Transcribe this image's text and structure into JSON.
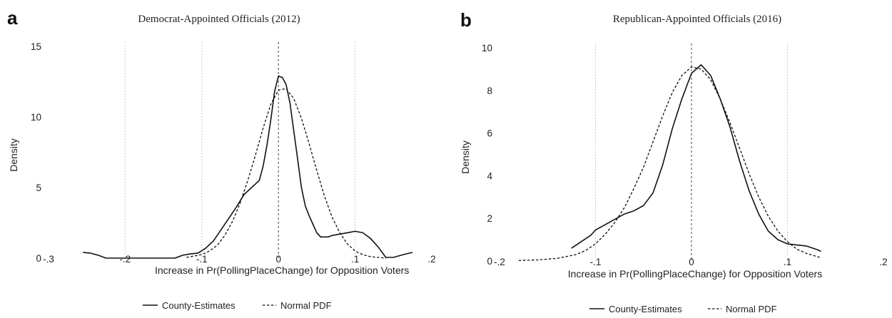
{
  "chart_data": [
    {
      "panel_label": "a",
      "type": "line",
      "title": "Democrat-Appointed Officials (2012)",
      "xlabel": "Increase in Pr(PollingPlaceChange) for Opposition Voters",
      "ylabel": "Density",
      "xlim": [
        -0.3,
        0.2
      ],
      "ylim": [
        0,
        15
      ],
      "x_ticks": [
        -0.3,
        -0.2,
        -0.1,
        0,
        0.1,
        0.2
      ],
      "x_tick_labels": [
        "-.3",
        "-.2",
        "-.1",
        "0",
        ".1",
        ".2"
      ],
      "y_ticks": [
        0,
        5,
        10,
        15
      ],
      "y_tick_labels": [
        "0",
        "5",
        "10",
        "15"
      ],
      "vgrid": [
        -0.2,
        -0.1,
        0.1
      ],
      "vline": 0,
      "legend_position": "bottom",
      "series": [
        {
          "name": "County-Estimates",
          "style": "solid",
          "x": [
            -0.255,
            -0.245,
            -0.235,
            -0.225,
            -0.2,
            -0.15,
            -0.135,
            -0.125,
            -0.115,
            -0.105,
            -0.095,
            -0.085,
            -0.075,
            -0.065,
            -0.055,
            -0.045,
            -0.035,
            -0.025,
            -0.02,
            -0.015,
            -0.01,
            -0.005,
            0,
            0.005,
            0.01,
            0.015,
            0.02,
            0.025,
            0.03,
            0.035,
            0.04,
            0.045,
            0.05,
            0.055,
            0.06,
            0.065,
            0.07,
            0.08,
            0.09,
            0.1,
            0.11,
            0.12,
            0.13,
            0.14,
            0.15,
            0.16,
            0.17,
            0.175
          ],
          "y": [
            0.4,
            0.35,
            0.2,
            0,
            0,
            0,
            0,
            0.2,
            0.3,
            0.35,
            0.7,
            1.2,
            2.0,
            2.8,
            3.6,
            4.5,
            5.0,
            5.5,
            6.5,
            8.0,
            9.8,
            11.8,
            12.9,
            12.8,
            12.3,
            11.0,
            9.0,
            7.0,
            5.0,
            3.7,
            3.0,
            2.4,
            1.8,
            1.5,
            1.5,
            1.5,
            1.6,
            1.7,
            1.8,
            1.9,
            1.8,
            1.4,
            0.8,
            0.05,
            0.05,
            0.2,
            0.35,
            0.4
          ]
        },
        {
          "name": "Normal PDF",
          "style": "dashed",
          "x": [
            -0.12,
            -0.1,
            -0.09,
            -0.08,
            -0.07,
            -0.06,
            -0.05,
            -0.04,
            -0.03,
            -0.02,
            -0.01,
            0,
            0.01,
            0.02,
            0.03,
            0.04,
            0.05,
            0.06,
            0.07,
            0.08,
            0.09,
            0.1,
            0.11,
            0.12,
            0.13,
            0.14
          ],
          "y": [
            0.05,
            0.25,
            0.5,
            0.9,
            1.6,
            2.6,
            3.9,
            5.5,
            7.3,
            9.2,
            10.9,
            11.9,
            12.0,
            11.3,
            9.9,
            8.1,
            6.2,
            4.4,
            2.9,
            1.8,
            1.0,
            0.5,
            0.25,
            0.1,
            0.05,
            0.0
          ]
        }
      ]
    },
    {
      "panel_label": "b",
      "type": "line",
      "title": "Republican-Appointed Officials (2016)",
      "xlabel": "Increase in Pr(PollingPlaceChange) for Opposition Voters",
      "ylabel": "Density",
      "xlim": [
        -0.2,
        0.2
      ],
      "ylim": [
        0,
        10
      ],
      "x_ticks": [
        -0.2,
        -0.1,
        0,
        0.1,
        0.2
      ],
      "x_tick_labels": [
        "-.2",
        "-.1",
        "0",
        ".1",
        ".2"
      ],
      "y_ticks": [
        0,
        2,
        4,
        6,
        8,
        10
      ],
      "y_tick_labels": [
        "0",
        "2",
        "4",
        "6",
        "8",
        "10"
      ],
      "vgrid": [
        -0.1,
        0.1
      ],
      "vline": 0,
      "legend_position": "bottom",
      "series": [
        {
          "name": "County-Estimates",
          "style": "solid",
          "x": [
            -0.125,
            -0.115,
            -0.105,
            -0.1,
            -0.09,
            -0.08,
            -0.07,
            -0.06,
            -0.05,
            -0.04,
            -0.03,
            -0.02,
            -0.01,
            0,
            0.01,
            0.02,
            0.03,
            0.04,
            0.05,
            0.06,
            0.07,
            0.08,
            0.09,
            0.1,
            0.11,
            0.12,
            0.13,
            0.135
          ],
          "y": [
            0.6,
            0.9,
            1.2,
            1.45,
            1.7,
            1.95,
            2.2,
            2.35,
            2.6,
            3.2,
            4.5,
            6.2,
            7.6,
            8.8,
            9.2,
            8.7,
            7.6,
            6.3,
            4.7,
            3.3,
            2.2,
            1.4,
            1.0,
            0.8,
            0.75,
            0.7,
            0.55,
            0.45
          ]
        },
        {
          "name": "Normal PDF",
          "style": "dashed",
          "x": [
            -0.18,
            -0.16,
            -0.14,
            -0.12,
            -0.11,
            -0.1,
            -0.09,
            -0.08,
            -0.07,
            -0.06,
            -0.05,
            -0.04,
            -0.03,
            -0.02,
            -0.01,
            0,
            0.01,
            0.02,
            0.03,
            0.04,
            0.05,
            0.06,
            0.07,
            0.08,
            0.09,
            0.1,
            0.11,
            0.12,
            0.135
          ],
          "y": [
            0.02,
            0.05,
            0.12,
            0.3,
            0.5,
            0.8,
            1.25,
            1.8,
            2.5,
            3.4,
            4.4,
            5.6,
            6.8,
            7.9,
            8.7,
            9.1,
            9.0,
            8.5,
            7.6,
            6.5,
            5.3,
            4.1,
            3.0,
            2.1,
            1.4,
            0.9,
            0.55,
            0.35,
            0.15
          ]
        }
      ]
    }
  ]
}
